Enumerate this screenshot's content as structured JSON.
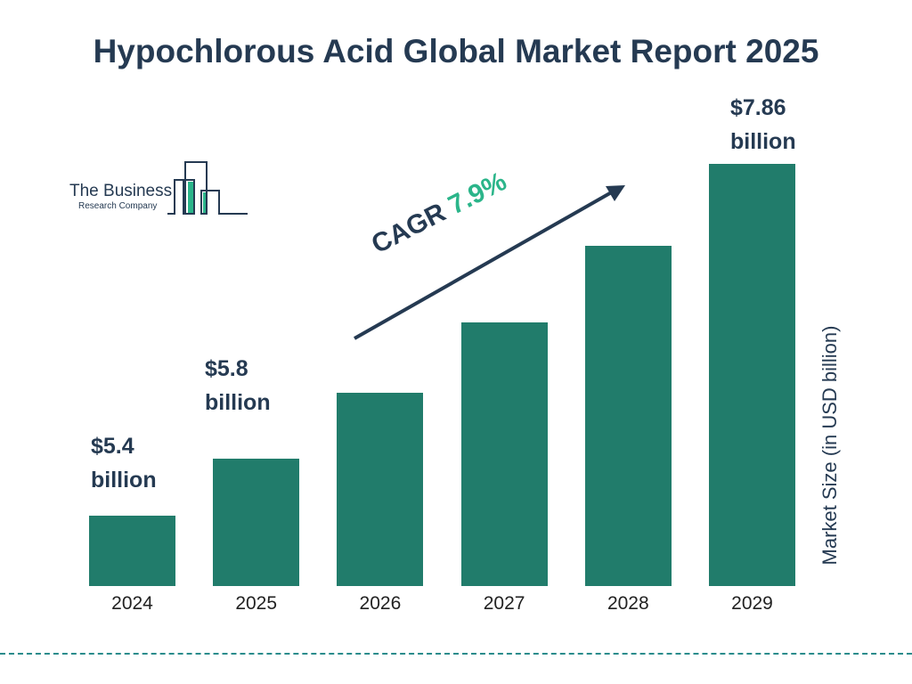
{
  "chart_data": {
    "type": "bar",
    "title": "Hypochlorous Acid Global Market Report 2025",
    "categories": [
      "2024",
      "2025",
      "2026",
      "2027",
      "2028",
      "2029"
    ],
    "values": [
      5.4,
      5.8,
      6.26,
      6.75,
      7.29,
      7.86
    ],
    "data_labels": [
      {
        "category": "2024",
        "line1": "$5.4",
        "line2": "billion"
      },
      {
        "category": "2025",
        "line1": "$5.8",
        "line2": "billion"
      },
      {
        "category": "2029",
        "line1": "$7.86",
        "line2": "billion"
      }
    ],
    "ylabel": "Market Size (in USD billion)",
    "xlabel": "",
    "grid": false,
    "bar_color": "#217c6b",
    "annotation": {
      "prefix": "CAGR",
      "value": "7.9%",
      "value_color": "#2bb58a"
    }
  },
  "logo": {
    "line1": "The Business",
    "line2": "Research Company"
  }
}
